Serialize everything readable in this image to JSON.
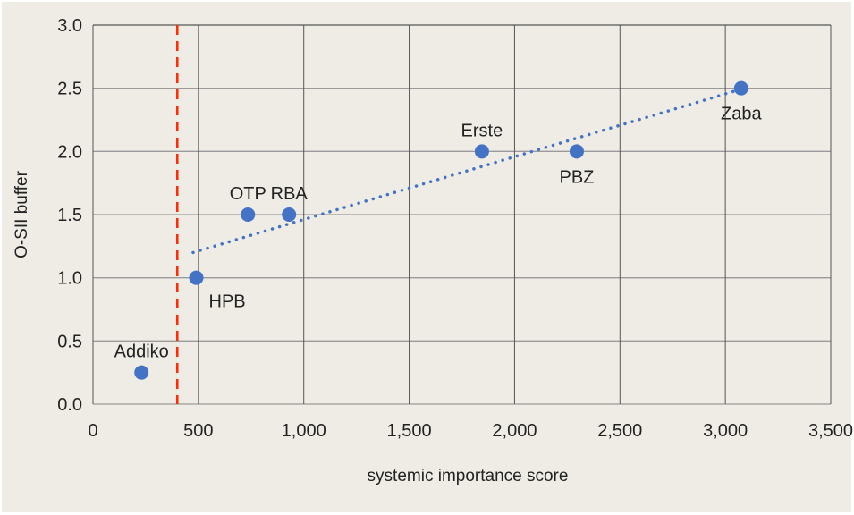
{
  "chart_data": {
    "type": "scatter",
    "title": "",
    "xlabel": "systemic importance score",
    "ylabel": "O-SII buffer",
    "xlim": [
      0,
      3500
    ],
    "ylim": [
      0,
      3.0
    ],
    "xticks": [
      0,
      500,
      1000,
      1500,
      2000,
      2500,
      3000,
      3500
    ],
    "xtick_labels": [
      "0",
      "500",
      "1,000",
      "1,500",
      "2,000",
      "2,500",
      "3,000",
      "3,500"
    ],
    "yticks": [
      0,
      0.5,
      1.0,
      1.5,
      2.0,
      2.5,
      3.0
    ],
    "ytick_labels": [
      "0.0",
      "0.5",
      "1.0",
      "1.5",
      "2.0",
      "2.5",
      "3.0"
    ],
    "grid": true,
    "points": [
      {
        "label": "Addiko",
        "x": 230,
        "y": 0.25,
        "label_pos": "above"
      },
      {
        "label": "HPB",
        "x": 490,
        "y": 1.0,
        "label_pos": "below-right"
      },
      {
        "label": "OTP",
        "x": 735,
        "y": 1.5,
        "label_pos": "above"
      },
      {
        "label": "RBA",
        "x": 930,
        "y": 1.5,
        "label_pos": "above"
      },
      {
        "label": "Erste",
        "x": 1845,
        "y": 2.0,
        "label_pos": "above"
      },
      {
        "label": "PBZ",
        "x": 2295,
        "y": 2.0,
        "label_pos": "below"
      },
      {
        "label": "Zaba",
        "x": 3075,
        "y": 2.5,
        "label_pos": "below"
      }
    ],
    "trendline": {
      "x": [
        475,
        3050
      ],
      "y": [
        1.2,
        2.48
      ],
      "style": "dotted"
    },
    "threshold_line": {
      "x": 400,
      "style": "dashed"
    },
    "colors": {
      "point": "#4472c4",
      "trend": "#4472c4",
      "threshold": "#ff2a00",
      "background": "#efece6"
    }
  }
}
